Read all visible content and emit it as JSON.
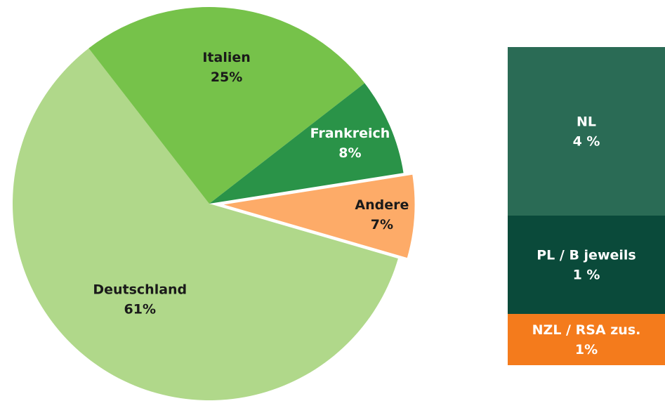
{
  "chart_data": {
    "type": "pie",
    "categories": [
      "Italien",
      "Frankreich",
      "Andere",
      "Deutschland"
    ],
    "values": [
      25,
      8,
      7,
      61
    ],
    "value_labels": [
      "25%",
      "8%",
      "7%",
      "61%"
    ],
    "colors": [
      "#76c24a",
      "#2a9348",
      "#fdab68",
      "#b0d88a"
    ],
    "exploded": "Andere"
  },
  "breakdown": [
    {
      "label": "NL",
      "value": "4 %",
      "color": "#2a6b55"
    },
    {
      "label": "PL / B jeweils",
      "value": "1 %",
      "color": "#0a4a3a"
    },
    {
      "label": "NZL / RSA zus.",
      "value": "1%",
      "color": "#f47b1c"
    }
  ]
}
